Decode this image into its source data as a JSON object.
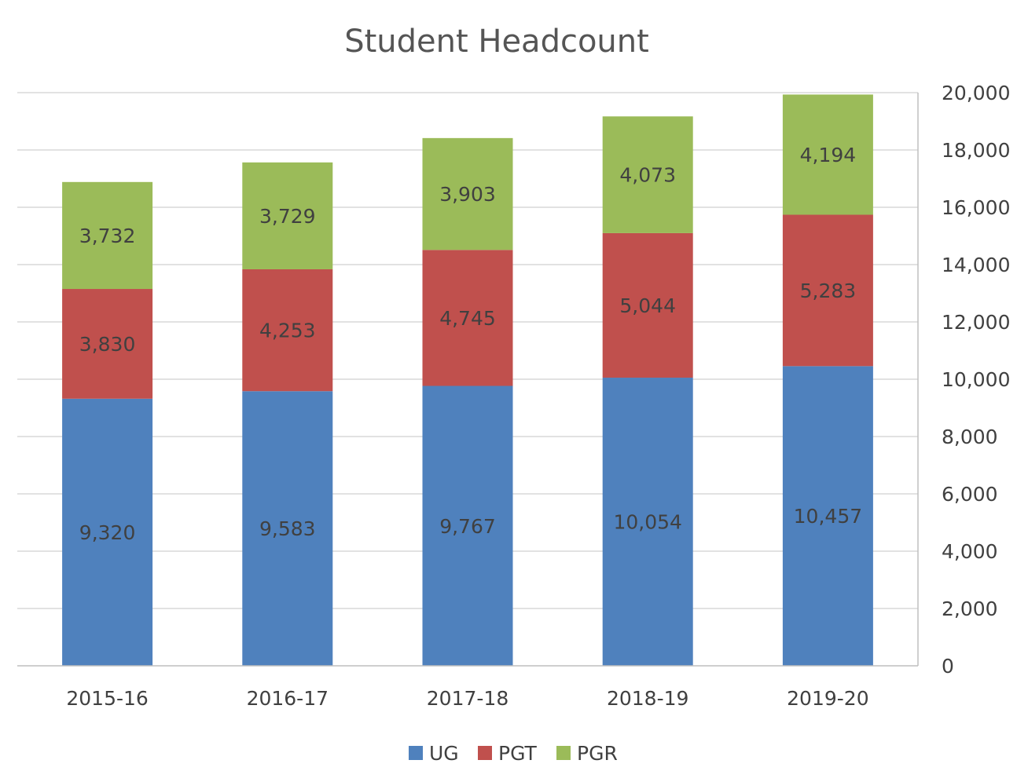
{
  "chart_data": {
    "type": "bar",
    "stacked": true,
    "title": "Student Headcount",
    "xlabel": "",
    "ylabel": "",
    "categories": [
      "2015-16",
      "2016-17",
      "2017-18",
      "2018-19",
      "2019-20"
    ],
    "series": [
      {
        "name": "UG",
        "color": "#4f81bd",
        "values": [
          9320,
          9583,
          9767,
          10054,
          10457
        ]
      },
      {
        "name": "PGT",
        "color": "#c0504d",
        "values": [
          3830,
          4253,
          4745,
          5044,
          5283
        ]
      },
      {
        "name": "PGR",
        "color": "#9bbb59",
        "values": [
          3732,
          3729,
          3903,
          4073,
          4194
        ]
      }
    ],
    "data_labels": [
      [
        "9,320",
        "9,583",
        "9,767",
        "10,054",
        "10,457"
      ],
      [
        "3,830",
        "4,253",
        "4,745",
        "5,044",
        "5,283"
      ],
      [
        "3,732",
        "3,729",
        "3,903",
        "4,073",
        "4,194"
      ]
    ],
    "ylim": [
      0,
      20000
    ],
    "yticks": [
      0,
      2000,
      4000,
      6000,
      8000,
      10000,
      12000,
      14000,
      16000,
      18000,
      20000
    ],
    "ytick_labels": [
      "0",
      "2,000",
      "4,000",
      "6,000",
      "8,000",
      "10,000",
      "12,000",
      "14,000",
      "16,000",
      "18,000",
      "20,000"
    ],
    "y_axis_side": "right",
    "grid": true,
    "legend_position": "bottom"
  }
}
